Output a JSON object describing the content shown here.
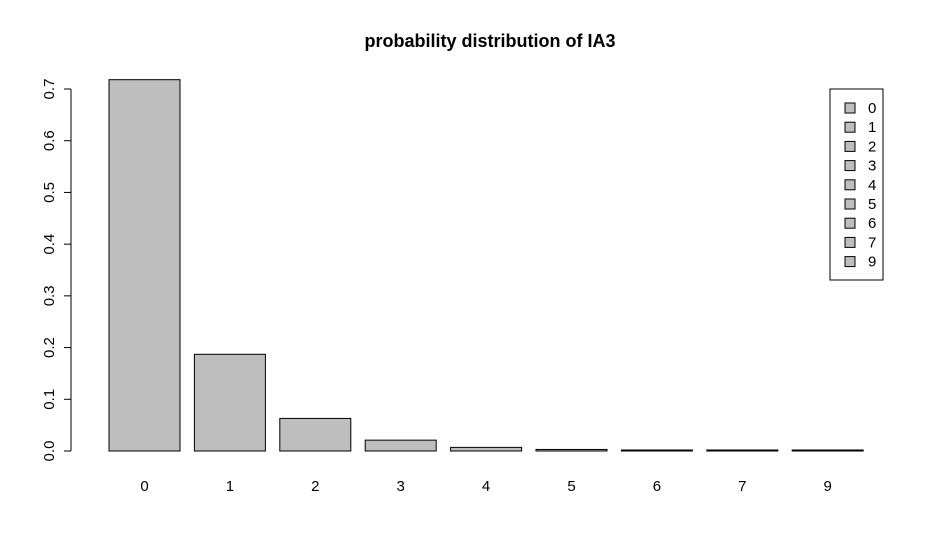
{
  "chart_data": {
    "type": "bar",
    "title": "probability distribution of  IA3",
    "xlabel": "",
    "ylabel": "",
    "categories": [
      "0",
      "1",
      "2",
      "3",
      "4",
      "5",
      "6",
      "7",
      "9"
    ],
    "values": [
      0.718,
      0.187,
      0.063,
      0.021,
      0.007,
      0.003,
      0.001,
      0.0005,
      0.0003
    ],
    "ylim": [
      0,
      0.7
    ],
    "yticks": [
      "0.0",
      "0.1",
      "0.2",
      "0.3",
      "0.4",
      "0.5",
      "0.6",
      "0.7"
    ],
    "legend": {
      "position": "top-right",
      "entries": [
        "0",
        "1",
        "2",
        "3",
        "4",
        "5",
        "6",
        "7",
        "9"
      ]
    },
    "grid": false,
    "colors": {
      "bar_fill": "#bebebe",
      "bar_stroke": "#000000"
    }
  }
}
